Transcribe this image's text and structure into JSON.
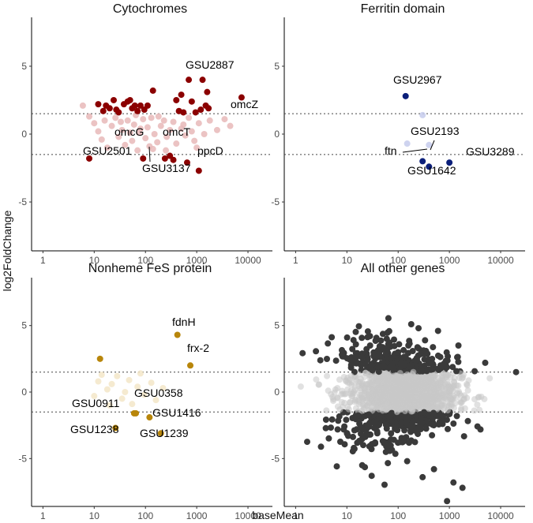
{
  "chart_data": {
    "type": "scatter",
    "xlabel": "baseMean",
    "ylabel": "log2FoldChange",
    "x_scale": "log10",
    "xlim": [
      0.6,
      30000
    ],
    "ylim": [
      -8.6,
      8.6
    ],
    "x_ticks": [
      1,
      10,
      100,
      1000,
      10000
    ],
    "x_tick_labels": [
      "1",
      "10",
      "100",
      "1000",
      "10000"
    ],
    "y_ticks": [
      -5,
      0,
      5
    ],
    "y_tick_labels": [
      "-5",
      "0",
      "5"
    ],
    "thresholds": [
      1.5,
      -1.5
    ],
    "panels": [
      {
        "title": "Cytochromes",
        "color": "#8b0000",
        "faded_color": "#e8b9b9",
        "significant": [
          {
            "x": 8,
            "y": -1.8,
            "label": "GSU2501"
          },
          {
            "x": 12,
            "y": 2.2
          },
          {
            "x": 15,
            "y": 1.7
          },
          {
            "x": 17,
            "y": 2.1
          },
          {
            "x": 20,
            "y": 1.9
          },
          {
            "x": 24,
            "y": 2.5
          },
          {
            "x": 27,
            "y": 1.8
          },
          {
            "x": 30,
            "y": 1.6
          },
          {
            "x": 38,
            "y": 2.2
          },
          {
            "x": 45,
            "y": 2.4
          },
          {
            "x": 50,
            "y": 2.5
          },
          {
            "x": 55,
            "y": 1.9
          },
          {
            "x": 62,
            "y": 2.1
          },
          {
            "x": 70,
            "y": 1.7
          },
          {
            "x": 80,
            "y": 2.1
          },
          {
            "x": 95,
            "y": 1.8
          },
          {
            "x": 110,
            "y": 2.1
          },
          {
            "x": 140,
            "y": 3.2
          },
          {
            "x": 90,
            "y": -1.8,
            "label": "omcG"
          },
          {
            "x": 240,
            "y": -1.8
          },
          {
            "x": 300,
            "y": -1.6,
            "label": "omcT"
          },
          {
            "x": 350,
            "y": -1.9,
            "label": "GSU3137"
          },
          {
            "x": 400,
            "y": 2.5
          },
          {
            "x": 450,
            "y": 1.7
          },
          {
            "x": 500,
            "y": 2.9
          },
          {
            "x": 550,
            "y": 1.6
          },
          {
            "x": 650,
            "y": -2.1
          },
          {
            "x": 700,
            "y": 4.0,
            "label": "GSU2887"
          },
          {
            "x": 800,
            "y": 2.4
          },
          {
            "x": 950,
            "y": 1.6
          },
          {
            "x": 1200,
            "y": 1.8
          },
          {
            "x": 1300,
            "y": 4.0
          },
          {
            "x": 1500,
            "y": 2.1
          },
          {
            "x": 1600,
            "y": 3.1
          },
          {
            "x": 1700,
            "y": 1.9
          },
          {
            "x": 1100,
            "y": -2.7,
            "label": "ppcD"
          },
          {
            "x": 7500,
            "y": 2.7,
            "label": "omcZ"
          }
        ],
        "faded": [
          {
            "x": 6,
            "y": 2.1
          },
          {
            "x": 8,
            "y": 1.3
          },
          {
            "x": 10,
            "y": 0.8
          },
          {
            "x": 12,
            "y": 0.2
          },
          {
            "x": 14,
            "y": -0.4
          },
          {
            "x": 16,
            "y": 1.0
          },
          {
            "x": 18,
            "y": -1.0
          },
          {
            "x": 22,
            "y": 0.6
          },
          {
            "x": 26,
            "y": 1.2
          },
          {
            "x": 30,
            "y": -0.2
          },
          {
            "x": 35,
            "y": 0.3
          },
          {
            "x": 40,
            "y": -0.8
          },
          {
            "x": 45,
            "y": 1.0
          },
          {
            "x": 50,
            "y": 0.1
          },
          {
            "x": 55,
            "y": -0.5
          },
          {
            "x": 60,
            "y": 0.7
          },
          {
            "x": 70,
            "y": -1.2
          },
          {
            "x": 80,
            "y": 0.4
          },
          {
            "x": 90,
            "y": 1.1
          },
          {
            "x": 100,
            "y": -0.3
          },
          {
            "x": 110,
            "y": 0.5
          },
          {
            "x": 120,
            "y": -0.9
          },
          {
            "x": 130,
            "y": 1.2
          },
          {
            "x": 150,
            "y": 0.0
          },
          {
            "x": 170,
            "y": -0.6
          },
          {
            "x": 200,
            "y": 0.6
          },
          {
            "x": 230,
            "y": 1.0
          },
          {
            "x": 260,
            "y": -0.2
          },
          {
            "x": 300,
            "y": 0.3
          },
          {
            "x": 350,
            "y": 0.9
          },
          {
            "x": 400,
            "y": -0.7
          },
          {
            "x": 500,
            "y": 0.4
          },
          {
            "x": 600,
            "y": -0.1
          },
          {
            "x": 700,
            "y": 1.2
          },
          {
            "x": 800,
            "y": 0.2
          },
          {
            "x": 900,
            "y": -0.5
          },
          {
            "x": 1100,
            "y": 0.8
          },
          {
            "x": 1400,
            "y": 0.0
          },
          {
            "x": 1800,
            "y": 1.0
          },
          {
            "x": 2500,
            "y": 0.3
          },
          {
            "x": 3500,
            "y": 1.1
          },
          {
            "x": 4500,
            "y": 0.6
          },
          {
            "x": 65,
            "y": 1.4
          },
          {
            "x": 180,
            "y": 1.3
          },
          {
            "x": 33,
            "y": 0.9
          },
          {
            "x": 75,
            "y": 0.1
          },
          {
            "x": 140,
            "y": -1.1
          },
          {
            "x": 250,
            "y": -1.2
          },
          {
            "x": 550,
            "y": 0.7
          },
          {
            "x": 1000,
            "y": -1.0
          }
        ]
      },
      {
        "title": "Ferritin domain",
        "color": "#0b1f7a",
        "faded_color": "#c5cbec",
        "significant": [
          {
            "x": 140,
            "y": 2.8,
            "label": "GSU2967"
          },
          {
            "x": 300,
            "y": -2.0,
            "label": "ftn"
          },
          {
            "x": 400,
            "y": -2.4,
            "label": "GSU1642"
          },
          {
            "x": 1000,
            "y": -2.1,
            "label": "GSU3289"
          }
        ],
        "faded": [
          {
            "x": 300,
            "y": 1.4
          },
          {
            "x": 150,
            "y": -0.7
          },
          {
            "x": 400,
            "y": -0.8,
            "label": "GSU2193"
          }
        ]
      },
      {
        "title": "Nonheme FeS protein",
        "color": "#b8860b",
        "faded_color": "#f3e6c8",
        "significant": [
          {
            "x": 13,
            "y": 2.5
          },
          {
            "x": 26,
            "y": -2.7,
            "label": "GSU1238"
          },
          {
            "x": 60,
            "y": -1.6,
            "label": "GSU0911"
          },
          {
            "x": 65,
            "y": -1.6,
            "label": "GSU0358"
          },
          {
            "x": 120,
            "y": -1.9,
            "label": "GSU1416"
          },
          {
            "x": 200,
            "y": -3.1,
            "label": "GSU1239"
          },
          {
            "x": 420,
            "y": 4.3,
            "label": "fdnH"
          },
          {
            "x": 750,
            "y": 2.0,
            "label": "frx-2"
          }
        ],
        "faded": [
          {
            "x": 10,
            "y": -0.3
          },
          {
            "x": 12,
            "y": 0.8
          },
          {
            "x": 14,
            "y": 1.3
          },
          {
            "x": 18,
            "y": 0.2
          },
          {
            "x": 20,
            "y": -1.0
          },
          {
            "x": 22,
            "y": 0.6
          },
          {
            "x": 28,
            "y": 1.2
          },
          {
            "x": 35,
            "y": -0.5
          },
          {
            "x": 40,
            "y": 0.0
          },
          {
            "x": 48,
            "y": 0.9
          },
          {
            "x": 55,
            "y": -0.9
          },
          {
            "x": 70,
            "y": 0.4
          },
          {
            "x": 80,
            "y": 1.4
          },
          {
            "x": 95,
            "y": -0.2
          },
          {
            "x": 130,
            "y": 0.7
          },
          {
            "x": 160,
            "y": -0.6
          },
          {
            "x": 220,
            "y": 0.3
          }
        ]
      },
      {
        "title": "All other genes",
        "color": "#3a3a3a",
        "faded_color": "#c8c8c8",
        "significant": [
          {
            "x": 180,
            "y": 5.1
          },
          {
            "x": 600,
            "y": 4.6
          },
          {
            "x": 60,
            "y": 4.0
          },
          {
            "x": 250,
            "y": 4.8
          },
          {
            "x": 1500,
            "y": 3.5
          },
          {
            "x": 8,
            "y": 2.8
          },
          {
            "x": 20000,
            "y": 1.5
          },
          {
            "x": 5000,
            "y": 2.2
          },
          {
            "x": 900,
            "y": -8.2
          },
          {
            "x": 1800,
            "y": -7.2
          },
          {
            "x": 1200,
            "y": -6.8
          },
          {
            "x": 300,
            "y": -6.4
          },
          {
            "x": 500,
            "y": -5.8
          },
          {
            "x": 150,
            "y": -5.2
          }
        ],
        "faded": []
      }
    ]
  }
}
